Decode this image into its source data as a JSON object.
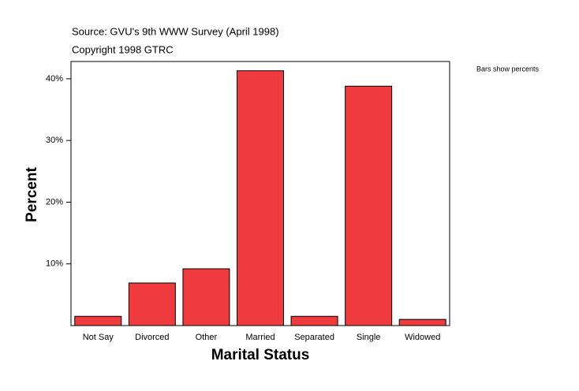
{
  "chart_data": {
    "type": "bar",
    "source": "Source: GVU's 9th WWW Survey (April 1998)",
    "copyright": "Copyright 1998 GTRC",
    "note": "Bars show percents",
    "ylabel": "Percent",
    "xlabel": "Marital Status",
    "categories": [
      "Not Say",
      "Divorced",
      "Other",
      "Married",
      "Separated",
      "Single",
      "Widowed"
    ],
    "values": [
      1.5,
      6.9,
      9.2,
      41.3,
      1.5,
      38.8,
      1.0
    ],
    "color": "#ef3b3e",
    "ylim": [
      0,
      42.8
    ],
    "yticks": [
      {
        "value": 10,
        "label": "10%"
      },
      {
        "value": 20,
        "label": "20%"
      },
      {
        "value": 30,
        "label": "30%"
      },
      {
        "value": 40,
        "label": "40%"
      }
    ]
  }
}
